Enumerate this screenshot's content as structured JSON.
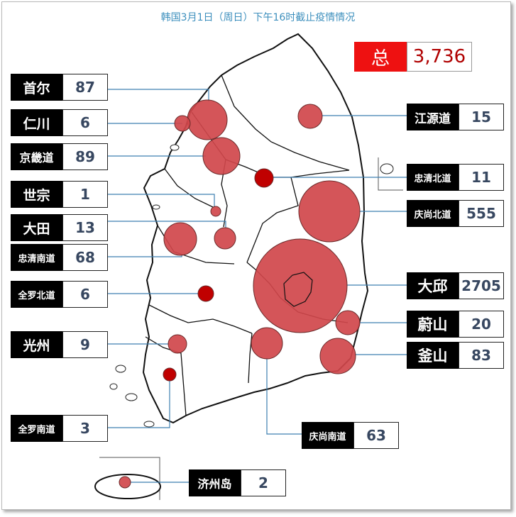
{
  "title": "韩国3月1日（周日）下午16时截止疫情情况",
  "total": {
    "label": "总",
    "value": "3,736"
  },
  "regions": [
    {
      "id": "seoul",
      "name": "首尔",
      "value": "87"
    },
    {
      "id": "incheon",
      "name": "仁川",
      "value": "6"
    },
    {
      "id": "gyeonggi",
      "name": "京畿道",
      "value": "89"
    },
    {
      "id": "sejong",
      "name": "世宗",
      "value": "1"
    },
    {
      "id": "daejeon",
      "name": "大田",
      "value": "13"
    },
    {
      "id": "chungnam",
      "name": "忠清南道",
      "value": "68"
    },
    {
      "id": "jeonbuk",
      "name": "全罗北道",
      "value": "6"
    },
    {
      "id": "gwangju",
      "name": "光州",
      "value": "9"
    },
    {
      "id": "jeonnam",
      "name": "全罗南道",
      "value": "3"
    },
    {
      "id": "jeju",
      "name": "济州岛",
      "value": "2"
    },
    {
      "id": "gangwon",
      "name": "江源道",
      "value": "15"
    },
    {
      "id": "chungbuk",
      "name": "忠清北道",
      "value": "11"
    },
    {
      "id": "gyeongbuk",
      "name": "庆尚北道",
      "value": "555"
    },
    {
      "id": "daegu",
      "name": "大邱",
      "value": "2705"
    },
    {
      "id": "ulsan",
      "name": "蔚山",
      "value": "20"
    },
    {
      "id": "busan",
      "name": "釜山",
      "value": "83"
    },
    {
      "id": "gyeongnam",
      "name": "庆尚南道",
      "value": "63"
    }
  ],
  "colors": {
    "bubble": "#d0474b",
    "bubble_dark": "#c00000",
    "leader": "#3d7fb0",
    "title": "#3d8fbd",
    "total_bg": "#ee1111"
  }
}
